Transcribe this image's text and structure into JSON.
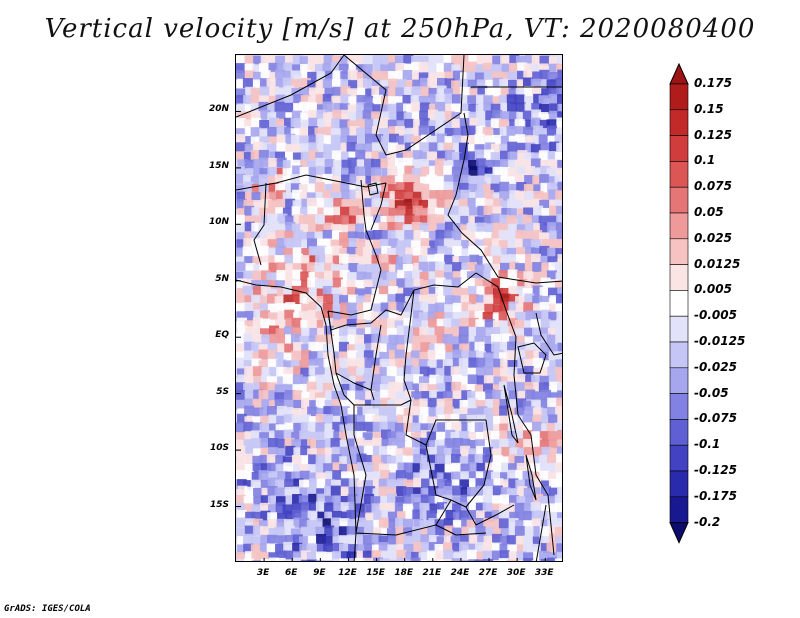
{
  "title": "Vertical velocity [m/s] at 250hPa, VT: 2020080400",
  "credit": "GrADS: IGES/COLA",
  "lat_labels": [
    "20N",
    "15N",
    "10N",
    "5N",
    "EQ",
    "5S",
    "10S",
    "15S"
  ],
  "lon_labels": [
    "3E",
    "6E",
    "9E",
    "12E",
    "15E",
    "18E",
    "21E",
    "24E",
    "27E",
    "30E",
    "33E"
  ],
  "colorbar": {
    "labels": [
      "0.175",
      "0.15",
      "0.125",
      "0.1",
      "0.075",
      "0.05",
      "0.025",
      "0.0125",
      "0.005",
      "-0.005",
      "-0.0125",
      "-0.025",
      "-0.05",
      "-0.075",
      "-0.1",
      "-0.125",
      "-0.175",
      "-0.2"
    ],
    "colors": [
      "#9e1414",
      "#b01c1c",
      "#c22a2a",
      "#d13c3c",
      "#dc5656",
      "#e57676",
      "#ee9a9a",
      "#f6c2c2",
      "#fbe4e4",
      "#ffffff",
      "#e2e2fa",
      "#c6c6f6",
      "#a6a6ee",
      "#8282e2",
      "#6060d4",
      "#4242c2",
      "#2a2aac",
      "#181890",
      "#0c0c70"
    ]
  },
  "map": {
    "lat_range": [
      -20,
      25
    ],
    "lon_range": [
      0,
      35
    ],
    "colors": {
      "background": "#dcdcf4",
      "border": "#000000"
    }
  }
}
